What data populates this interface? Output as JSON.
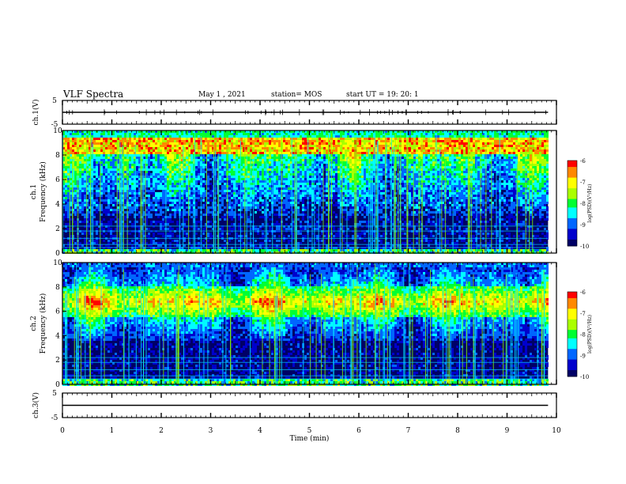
{
  "header": {
    "title": "VLF Spectra",
    "date": "May 1  , 2021",
    "station": "station= MOS",
    "start": "start  UT  =   19: 20: 1"
  },
  "colors": {
    "background": "#ffffff",
    "axis": "#000000",
    "colormap": [
      "#000066",
      "#0000cc",
      "#0066ff",
      "#00ffff",
      "#00ff33",
      "#aaff00",
      "#ffff00",
      "#ff8800",
      "#ff0000"
    ]
  },
  "chart_data": [
    {
      "type": "line",
      "panel": "ch1-waveform",
      "ylabel": "ch.1(V)",
      "ylim": [
        -5,
        5
      ],
      "yticks": [
        "5",
        "-5"
      ],
      "x": [
        0,
        9.83
      ],
      "y": [
        0,
        0
      ],
      "x_axis_labels_shown": false
    },
    {
      "type": "heatmap",
      "panel": "ch1-spectrogram",
      "ylabel": "ch.1\nFrequency (kHz)",
      "ylim": [
        0,
        10
      ],
      "yticks": [
        "0",
        "2",
        "4",
        "6",
        "8",
        "10"
      ],
      "xlim": [
        0,
        9.83
      ],
      "colorbar": {
        "label": "log(PSD)(V²/Hz)",
        "range": [
          -10,
          -6
        ],
        "ticks": [
          "-6",
          "-7",
          "-8",
          "-9",
          "-10"
        ]
      },
      "profile": {
        "strong_band_khz": [
          8.0,
          9.5
        ],
        "background_level": -10,
        "peak_level": -6
      }
    },
    {
      "type": "heatmap",
      "panel": "ch2-spectrogram",
      "ylabel": "ch.2\nFrequency (kHz)",
      "ylim": [
        0,
        10
      ],
      "yticks": [
        "0",
        "2",
        "4",
        "6",
        "8",
        "10"
      ],
      "xlim": [
        0,
        9.83
      ],
      "colorbar": {
        "label": "log(PSD)(V²/Hz)",
        "range": [
          -10,
          -6
        ],
        "ticks": [
          "-6",
          "-7",
          "-8",
          "-9",
          "-10"
        ]
      },
      "profile": {
        "strong_band_khz": [
          5.5,
          8.0
        ],
        "background_level": -10,
        "peak_level": -6
      }
    },
    {
      "type": "line",
      "panel": "ch3-waveform",
      "ylabel": "ch.3(V)",
      "ylim": [
        -5,
        5
      ],
      "yticks": [
        "5",
        "-5"
      ],
      "x": [
        0,
        9.83
      ],
      "y": [
        0,
        0
      ]
    }
  ],
  "xaxis": {
    "label": "Time  (min)",
    "range": [
      0,
      10
    ],
    "ticks": [
      "0",
      "1",
      "2",
      "3",
      "4",
      "5",
      "6",
      "7",
      "8",
      "9",
      "10"
    ]
  }
}
